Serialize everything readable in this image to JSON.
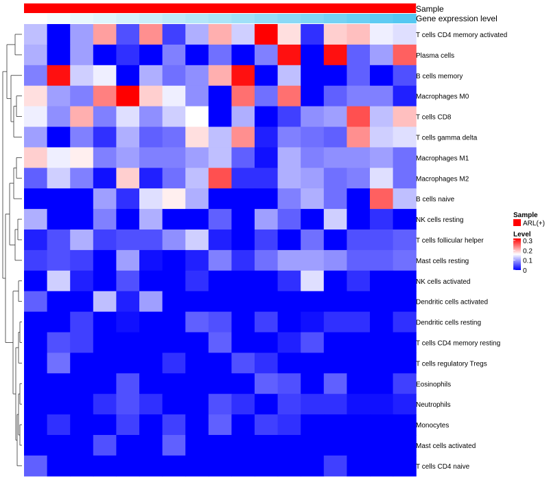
{
  "chart_data": {
    "type": "heatmap",
    "title": "",
    "annotations": {
      "sample_label": "Sample",
      "gene_label": "Gene expression level",
      "sample_color": "#ff0000",
      "gene_gradient": [
        "#ffffff",
        "#55c8f2"
      ]
    },
    "legend": {
      "position": "right",
      "sample_title": "Sample",
      "sample_entry": "ARL(+)",
      "sample_entry_color": "#ff0000",
      "level_title": "Level",
      "level_ticks": [
        "0.3",
        "0.2",
        "0.1",
        "0"
      ],
      "level_tick_values": [
        0.3,
        0.2,
        0.1,
        0
      ],
      "min": 0,
      "max": 0.32,
      "colors": [
        "#0000ff",
        "#ffffff",
        "#ff0000"
      ]
    },
    "rows": [
      "T cells CD4 memory activated",
      "Plasma cells",
      "B cells memory",
      "Macrophages M0",
      "T cells CD8",
      "T cells gamma delta",
      "Macrophages M1",
      "Macrophages M2",
      "B cells naive",
      "NK cells resting",
      "T cells follicular helper",
      "Mast cells resting",
      "NK cells activated",
      "Dendritic cells activated",
      "Dendritic cells resting",
      "T cells CD4 memory resting",
      "T cells regulatory  Tregs",
      "Eosinophils",
      "Neutrophils",
      "Monocytes",
      "Mast cells activated",
      "T cells CD4 naive"
    ],
    "columns": 17,
    "values": [
      [
        0.12,
        0,
        0.1,
        0.22,
        0.05,
        0.23,
        0.04,
        0.11,
        0.21,
        0.13,
        0.32,
        0.18,
        0.03,
        0.19,
        0.2,
        0.15,
        0.14
      ],
      [
        0.11,
        0,
        0.1,
        0,
        0.03,
        0,
        0.08,
        0,
        0.07,
        0,
        0.08,
        0.31,
        0,
        0.31,
        0.06,
        0.1,
        0.26
      ],
      [
        0.08,
        0.31,
        0.13,
        0.15,
        0,
        0.11,
        0.07,
        0.09,
        0.21,
        0.31,
        0,
        0.12,
        0,
        0,
        0.06,
        0,
        0.05
      ],
      [
        0.18,
        0.1,
        0.08,
        0.24,
        0.32,
        0.19,
        0.15,
        0.09,
        0,
        0.25,
        0.07,
        0.25,
        0,
        0.06,
        0.08,
        0.08,
        0.02
      ],
      [
        0.15,
        0.09,
        0.21,
        0.08,
        0.14,
        0.09,
        0.13,
        0.16,
        0,
        0.11,
        0,
        0.04,
        0.09,
        0.1,
        0.27,
        0.12,
        0.2
      ],
      [
        0.1,
        0,
        0.08,
        0.03,
        0.11,
        0.06,
        0.07,
        0.18,
        0.12,
        0.23,
        0.02,
        0.08,
        0.07,
        0.06,
        0.23,
        0.13,
        0.14
      ],
      [
        0.19,
        0.15,
        0.17,
        0.08,
        0.1,
        0.08,
        0.08,
        0.1,
        0.12,
        0.06,
        0.01,
        0.11,
        0.08,
        0.09,
        0.09,
        0.1,
        0.07
      ],
      [
        0.06,
        0.13,
        0.08,
        0.01,
        0.19,
        0.02,
        0.07,
        0.12,
        0.27,
        0.03,
        0.03,
        0.11,
        0.1,
        0.07,
        0.08,
        0.14,
        0.07
      ],
      [
        0,
        0,
        0,
        0.1,
        0.03,
        0.14,
        0.17,
        0.11,
        0,
        0,
        0,
        0.08,
        0.11,
        0.07,
        0,
        0.26,
        0.12
      ],
      [
        0.11,
        0,
        0,
        0.08,
        0,
        0.11,
        0,
        0,
        0.06,
        0,
        0.1,
        0.06,
        0,
        0.13,
        0,
        0.03,
        0
      ],
      [
        0.02,
        0.05,
        0.11,
        0.04,
        0.05,
        0.05,
        0.09,
        0.13,
        0.02,
        0,
        0.04,
        0,
        0.07,
        0,
        0.05,
        0.05,
        0.06
      ],
      [
        0.04,
        0.05,
        0.04,
        0,
        0.1,
        0.01,
        0,
        0.02,
        0.08,
        0.03,
        0.07,
        0.1,
        0.1,
        0.09,
        0.06,
        0.06,
        0.07
      ],
      [
        0,
        0.13,
        0.02,
        0,
        0.05,
        0,
        0,
        0.03,
        0,
        0,
        0,
        0.03,
        0.14,
        0,
        0.03,
        0,
        0
      ],
      [
        0.06,
        0,
        0,
        0.12,
        0.02,
        0.1,
        0,
        0,
        0,
        0,
        0,
        0,
        0,
        0,
        0,
        0,
        0
      ],
      [
        0,
        0,
        0.04,
        0,
        0.01,
        0,
        0,
        0.06,
        0.05,
        0,
        0.04,
        0,
        0.01,
        0.03,
        0.03,
        0,
        0.03
      ],
      [
        0,
        0.05,
        0.04,
        0,
        0,
        0,
        0,
        0,
        0.06,
        0,
        0,
        0.02,
        0.05,
        0,
        0,
        0,
        0
      ],
      [
        0,
        0.07,
        0,
        0,
        0,
        0,
        0.03,
        0,
        0,
        0.05,
        0.03,
        0,
        0,
        0,
        0,
        0,
        0
      ],
      [
        0,
        0,
        0,
        0,
        0.05,
        0,
        0,
        0,
        0,
        0,
        0.06,
        0.05,
        0,
        0.06,
        0,
        0,
        0.04
      ],
      [
        0,
        0,
        0,
        0.03,
        0.05,
        0.03,
        0,
        0,
        0.05,
        0.03,
        0,
        0.04,
        0.03,
        0.03,
        0.01,
        0.01,
        0.02
      ],
      [
        0,
        0.03,
        0,
        0,
        0.04,
        0,
        0.04,
        0,
        0.06,
        0,
        0.04,
        0.03,
        0,
        0,
        0,
        0,
        0
      ],
      [
        0,
        0,
        0,
        0.05,
        0,
        0,
        0.06,
        0,
        0,
        0,
        0,
        0,
        0,
        0,
        0,
        0,
        0
      ],
      [
        0.06,
        0,
        0,
        0,
        0,
        0,
        0,
        0,
        0,
        0,
        0,
        0,
        0,
        0.04,
        0,
        0,
        0
      ]
    ],
    "gene_expression_level": [
      0,
      0.06,
      0.13,
      0.19,
      0.25,
      0.31,
      0.38,
      0.44,
      0.5,
      0.56,
      0.63,
      0.69,
      0.75,
      0.81,
      0.88,
      0.94,
      1
    ]
  }
}
